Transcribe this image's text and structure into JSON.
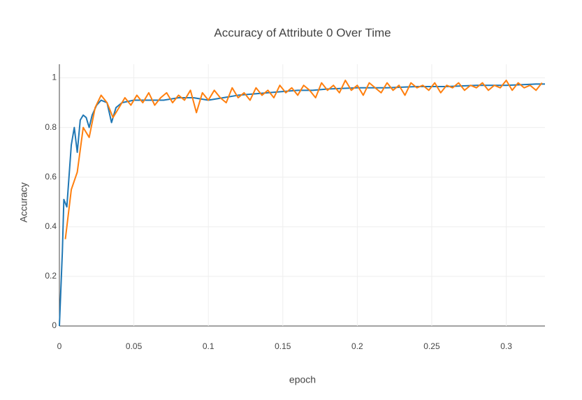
{
  "chart_data": {
    "type": "line",
    "title": "Accuracy of Attribute 0 Over Time",
    "xlabel": "epoch",
    "ylabel": "Accuracy",
    "xlim": [
      0,
      0.326
    ],
    "ylim": [
      0,
      1.055
    ],
    "xticks": [
      0,
      0.05,
      0.1,
      0.15,
      0.2,
      0.25,
      0.3
    ],
    "yticks": [
      0,
      0.2,
      0.4,
      0.6,
      0.8,
      1
    ],
    "grid": true,
    "series": [
      {
        "color": "#1f77b4",
        "x": [
          0,
          0.002,
          0.003,
          0.005,
          0.008,
          0.01,
          0.012,
          0.014,
          0.016,
          0.018,
          0.02,
          0.022,
          0.025,
          0.028,
          0.032,
          0.035,
          0.038,
          0.042,
          0.05,
          0.06,
          0.07,
          0.08,
          0.09,
          0.1,
          0.11,
          0.12,
          0.13,
          0.14,
          0.15,
          0.16,
          0.17,
          0.18,
          0.2,
          0.22,
          0.24,
          0.26,
          0.28,
          0.3,
          0.32,
          0.326
        ],
        "values": [
          0,
          0.3,
          0.51,
          0.48,
          0.73,
          0.8,
          0.7,
          0.83,
          0.85,
          0.84,
          0.8,
          0.85,
          0.89,
          0.91,
          0.9,
          0.82,
          0.88,
          0.9,
          0.91,
          0.91,
          0.91,
          0.92,
          0.92,
          0.91,
          0.92,
          0.93,
          0.935,
          0.94,
          0.945,
          0.95,
          0.95,
          0.955,
          0.96,
          0.96,
          0.965,
          0.965,
          0.97,
          0.97,
          0.975,
          0.975
        ]
      },
      {
        "color": "#ff7f0e",
        "x": [
          0.004,
          0.008,
          0.012,
          0.016,
          0.02,
          0.024,
          0.028,
          0.032,
          0.036,
          0.04,
          0.044,
          0.048,
          0.052,
          0.056,
          0.06,
          0.064,
          0.068,
          0.072,
          0.076,
          0.08,
          0.084,
          0.088,
          0.092,
          0.096,
          0.1,
          0.104,
          0.108,
          0.112,
          0.116,
          0.12,
          0.124,
          0.128,
          0.132,
          0.136,
          0.14,
          0.144,
          0.148,
          0.152,
          0.156,
          0.16,
          0.164,
          0.168,
          0.172,
          0.176,
          0.18,
          0.184,
          0.188,
          0.192,
          0.196,
          0.2,
          0.204,
          0.208,
          0.212,
          0.216,
          0.22,
          0.224,
          0.228,
          0.232,
          0.236,
          0.24,
          0.244,
          0.248,
          0.252,
          0.256,
          0.26,
          0.264,
          0.268,
          0.272,
          0.276,
          0.28,
          0.284,
          0.288,
          0.292,
          0.296,
          0.3,
          0.304,
          0.308,
          0.312,
          0.316,
          0.32,
          0.324
        ],
        "values": [
          0.35,
          0.55,
          0.62,
          0.8,
          0.76,
          0.88,
          0.93,
          0.9,
          0.84,
          0.88,
          0.92,
          0.89,
          0.93,
          0.9,
          0.94,
          0.89,
          0.92,
          0.94,
          0.9,
          0.93,
          0.91,
          0.95,
          0.86,
          0.94,
          0.91,
          0.95,
          0.92,
          0.9,
          0.96,
          0.92,
          0.94,
          0.91,
          0.96,
          0.93,
          0.95,
          0.92,
          0.97,
          0.94,
          0.96,
          0.93,
          0.97,
          0.95,
          0.92,
          0.98,
          0.95,
          0.97,
          0.94,
          0.99,
          0.95,
          0.97,
          0.93,
          0.98,
          0.96,
          0.94,
          0.98,
          0.95,
          0.97,
          0.93,
          0.98,
          0.96,
          0.97,
          0.95,
          0.98,
          0.94,
          0.97,
          0.96,
          0.98,
          0.95,
          0.97,
          0.96,
          0.98,
          0.95,
          0.97,
          0.96,
          0.99,
          0.95,
          0.98,
          0.96,
          0.97,
          0.95,
          0.98
        ]
      }
    ]
  }
}
